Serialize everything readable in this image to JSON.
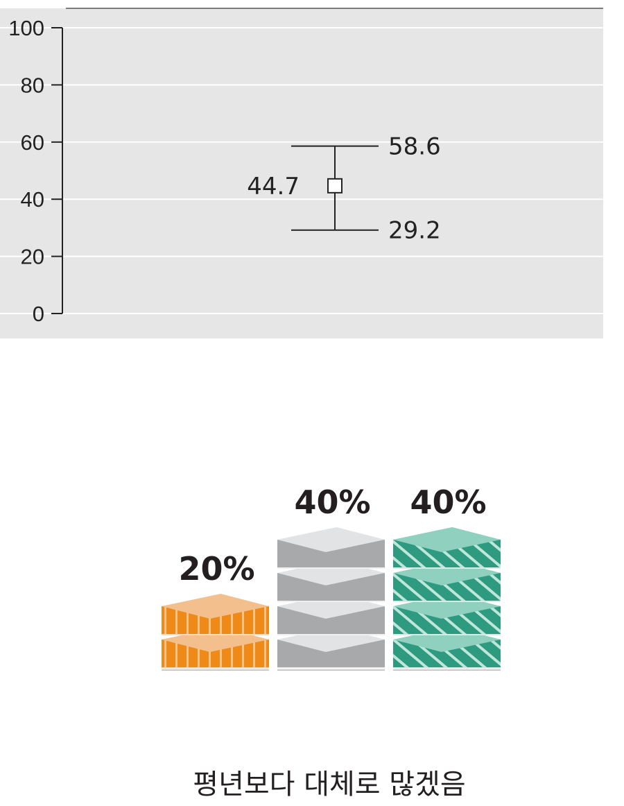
{
  "chart_data": {
    "type": "errorbar",
    "y_ticks": [
      "0",
      "20",
      "40",
      "60",
      "80",
      "100"
    ],
    "ylim": [
      0,
      100
    ],
    "grid": true,
    "point": {
      "value": 44.7,
      "upper": 58.6,
      "lower": 29.2
    },
    "point_label": "44.7",
    "upper_label": "58.6",
    "lower_label": "29.2"
  },
  "forecast": {
    "stacks": [
      {
        "percent": "20%",
        "value": 20,
        "color": "#ef8a18"
      },
      {
        "percent": "40%",
        "value": 40,
        "color": "#a8a9ab"
      },
      {
        "percent": "40%",
        "value": 40,
        "color": "#2e9a80"
      }
    ],
    "caption": "평년보다 대체로 많겠음"
  }
}
